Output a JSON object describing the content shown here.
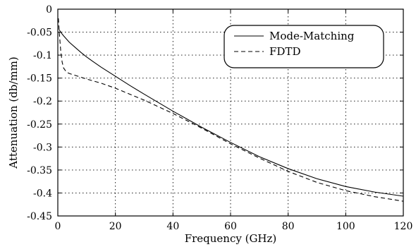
{
  "chart_data": {
    "type": "line",
    "title": "",
    "xlabel": "Frequency (GHz)",
    "ylabel": "Attenuation (db/mm)",
    "xlim": [
      0,
      120
    ],
    "ylim": [
      -0.45,
      0
    ],
    "grid": true,
    "legend_position": "top-right",
    "x_ticks": [
      0,
      20,
      40,
      60,
      80,
      100,
      120
    ],
    "x_tick_labels": [
      "0",
      "20",
      "40",
      "60",
      "80",
      "100",
      "120"
    ],
    "y_ticks": [
      0,
      -0.05,
      -0.1,
      -0.15,
      -0.2,
      -0.25,
      -0.3,
      -0.35,
      -0.4,
      -0.45
    ],
    "y_tick_labels": [
      "0",
      "-0.05",
      "-0.1",
      "-0.15",
      "-0.2",
      "-0.25",
      "-0.3",
      "-0.35",
      "-0.4",
      "-0.45"
    ],
    "series": [
      {
        "name": "Mode-Matching",
        "style": "solid",
        "x": [
          0.5,
          1,
          2,
          4,
          6,
          8,
          10,
          12,
          15,
          20,
          25,
          30,
          40,
          50,
          60,
          70,
          80,
          90,
          100,
          110,
          120
        ],
        "y": [
          -0.045,
          -0.05,
          -0.058,
          -0.072,
          -0.083,
          -0.094,
          -0.104,
          -0.113,
          -0.126,
          -0.146,
          -0.166,
          -0.185,
          -0.222,
          -0.257,
          -0.29,
          -0.321,
          -0.347,
          -0.369,
          -0.386,
          -0.398,
          -0.407
        ]
      },
      {
        "name": "FDTD",
        "style": "dashed",
        "x": [
          0.2,
          0.5,
          1,
          1.5,
          2,
          3,
          4,
          6,
          8,
          10,
          15,
          20,
          25,
          30,
          40,
          50,
          60,
          70,
          80,
          90,
          100,
          110,
          120
        ],
        "y": [
          -0.02,
          -0.05,
          -0.09,
          -0.115,
          -0.128,
          -0.137,
          -0.14,
          -0.144,
          -0.148,
          -0.152,
          -0.161,
          -0.172,
          -0.185,
          -0.198,
          -0.227,
          -0.259,
          -0.293,
          -0.324,
          -0.353,
          -0.377,
          -0.395,
          -0.408,
          -0.418
        ]
      }
    ]
  }
}
